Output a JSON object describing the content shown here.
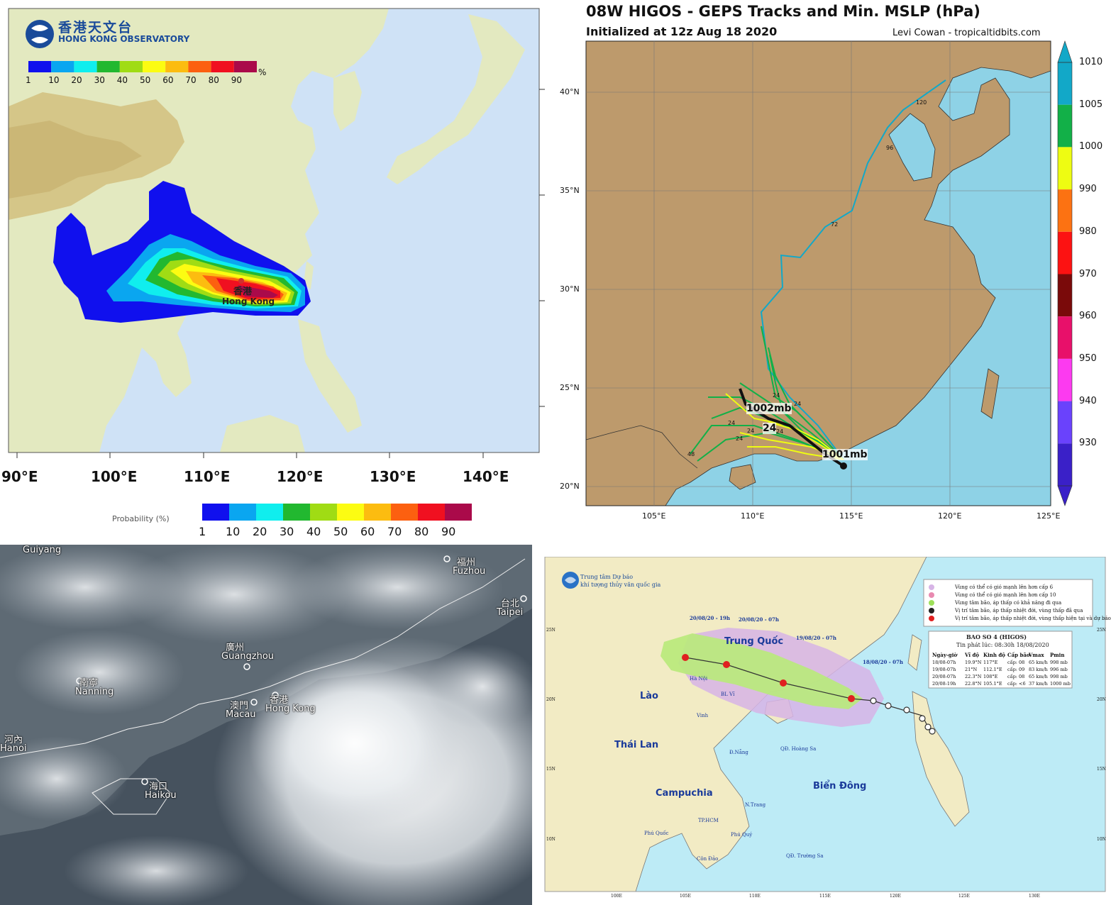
{
  "panel_hko": {
    "logo_cn": "香港天文台",
    "logo_en": "HONG KONG OBSERVATORY",
    "scale_top": {
      "labels": [
        "1",
        "10",
        "20",
        "30",
        "40",
        "50",
        "60",
        "70",
        "80",
        "90"
      ],
      "unit": "%"
    },
    "city_cn": "香港",
    "city_en": "Hong Kong",
    "lon_labels": [
      "90°E",
      "100°E",
      "110°E",
      "120°E",
      "130°E",
      "140°E"
    ],
    "legend_title": "Probability (%)",
    "legend_labels": [
      "1",
      "10",
      "20",
      "30",
      "40",
      "50",
      "60",
      "70",
      "80",
      "90"
    ],
    "scale_colors": [
      "#1010ee",
      "#0aa6f0",
      "#10eeee",
      "#22b830",
      "#a0dc14",
      "#fcfc12",
      "#fcbc10",
      "#fc6010",
      "#f01020",
      "#aa0a4a"
    ]
  },
  "panel_geps": {
    "title": "08W HIGOS - GEPS Tracks and Min. MSLP (hPa)",
    "subtitle": "Initialized at 12z Aug 18 2020",
    "credit": "Levi Cowan - tropicaltidbits.com",
    "lat_labels": [
      "40°N",
      "35°N",
      "30°N",
      "25°N",
      "20°N"
    ],
    "lon_labels": [
      "105°E",
      "110°E",
      "115°E",
      "120°E",
      "125°E"
    ],
    "colorbar_labels": [
      "1010",
      "1005",
      "1000",
      "990",
      "980",
      "970",
      "960",
      "950",
      "940",
      "930"
    ],
    "colorbar_colors": [
      "#12a8c8",
      "#12b048",
      "#eefc12",
      "#fc7212",
      "#fc1212",
      "#7a0a0a",
      "#e8106a",
      "#fc3af0",
      "#6a42fc",
      "#3a20c8"
    ],
    "track_labels": [
      "120",
      "96",
      "72",
      "48",
      "24",
      "24",
      "24",
      "24",
      "24",
      "24"
    ],
    "annotation_1002": "1002mb",
    "annotation_24": "24",
    "annotation_1001": "1001mb"
  },
  "panel_sat": {
    "cities": [
      {
        "cn": "",
        "en": "Guiyang"
      },
      {
        "cn": "福州",
        "en": "Fuzhou"
      },
      {
        "cn": "台北",
        "en": "Taipei"
      },
      {
        "cn": "廣州",
        "en": "Guangzhou"
      },
      {
        "cn": "南寧",
        "en": "Nanning"
      },
      {
        "cn": "澳門",
        "en": "Macau"
      },
      {
        "cn": "香港",
        "en": "Hong Kong"
      },
      {
        "cn": "河內",
        "en": "Hanoi"
      },
      {
        "cn": "海口",
        "en": "Haikou"
      }
    ]
  },
  "panel_vn": {
    "agency_1": "Trung tâm Dự báo",
    "agency_2": "khí tượng thủy văn quốc gia",
    "top_lon": [
      "100E",
      "105E",
      "110E",
      "115E",
      "120E",
      "125E",
      "130E"
    ],
    "bottom_lon": [
      "100E",
      "105E",
      "110E",
      "115E",
      "120E",
      "125E",
      "130E"
    ],
    "right_lat": [
      "25N",
      "20N",
      "15N",
      "10N"
    ],
    "left_lat": [
      "25N",
      "20N",
      "15N",
      "10N"
    ],
    "legend": [
      "Vùng có thể có gió mạnh lên hơn cấp 6",
      "Vùng có thể có gió mạnh lên hơn cấp 10",
      "Vùng tâm bão, áp thấp có khả năng đi qua",
      "Vị trí tâm bão, áp thấp nhiệt đới, vùng thấp đã qua",
      "Vị trí tâm bão, áp thấp nhiệt đới, vùng thấp hiện tại và dự báo"
    ],
    "table_title": "BAO SO 4 (HIGOS)",
    "table_issued": "Tin phát lúc: 08:30h 18/08/2020",
    "table_headers": [
      "Ngày-giờ",
      "Vĩ độ",
      "Kinh độ",
      "Cấp bão",
      "Vmax",
      "Pmin"
    ],
    "table_rows": [
      [
        "18/08-07h",
        "19.9°N",
        "117°E",
        "cấp: 08",
        "65 km/h",
        "998 mb"
      ],
      [
        "19/08-07h",
        "21°N",
        "112.1°E",
        "cấp: 09",
        "83 km/h",
        "996 mb"
      ],
      [
        "20/08-07h",
        "22.3°N",
        "108°E",
        "cấp: 08",
        "65 km/h",
        "998 mb"
      ],
      [
        "20/08-19h",
        "22.8°N",
        "105.1°E",
        "cấp: <6",
        "37 km/h",
        "1000 mb"
      ]
    ],
    "track_labels": [
      "20/08/20 - 19h",
      "20/08/20 - 07h",
      "19/08/20 - 07h",
      "18/08/20 - 07h"
    ],
    "regions": [
      "Trung Quốc",
      "Lào",
      "Thái Lan",
      "Campuchia",
      "Biển Đông"
    ],
    "places": [
      "Hà Nội",
      "BL Vĩ",
      "Vinh",
      "Đ.Nẵng",
      "QĐ. Hoàng Sa",
      "N.Trang",
      "TP.HCM",
      "Phú Quốc",
      "Phú Quý",
      "Côn Đảo",
      "QĐ. Trường Sa"
    ]
  }
}
